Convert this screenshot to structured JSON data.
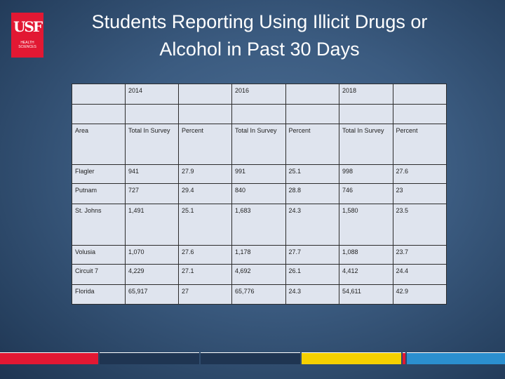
{
  "logo": {
    "mark": "USF",
    "subtitle": "HEALTH SCIENCES",
    "color": "#e21833"
  },
  "title": {
    "line1": "Students Reporting Using Illicit Drugs or",
    "line2": "Alcohol in Past 30 Days"
  },
  "table": {
    "years": [
      "2014",
      "2016",
      "2018"
    ],
    "area_header": "Area",
    "sub_headers": [
      "Total In Survey",
      "Percent",
      "Total In Survey",
      "Percent",
      "Total In Survey",
      "Percent"
    ],
    "rows": [
      {
        "area": "Flagler",
        "values": [
          "941",
          "27.9",
          "991",
          "25.1",
          "998",
          "27.6"
        ]
      },
      {
        "area": "Putnam",
        "values": [
          "727",
          "29.4",
          "840",
          "28.8",
          "746",
          "23"
        ]
      },
      {
        "area": "St. Johns",
        "values": [
          "1,491",
          "25.1",
          "1,683",
          "24.3",
          "1,580",
          "23.5"
        ]
      },
      {
        "area": "Volusia",
        "values": [
          "1,070",
          "27.6",
          "1,178",
          "27.7",
          "1,088",
          "23.7"
        ]
      },
      {
        "area": "Circuit 7",
        "values": [
          "4,229",
          "27.1",
          "4,692",
          "26.1",
          "4,412",
          "24.4"
        ]
      },
      {
        "area": "Florida",
        "values": [
          "65,917",
          "27",
          "65,776",
          "24.3",
          "54,611",
          "42.9"
        ]
      }
    ]
  },
  "bottom_bar_colors": [
    "#e21833",
    "#1f3552",
    "#1f3552",
    "#f5d000",
    "#e21833",
    "#2b8fcf"
  ]
}
